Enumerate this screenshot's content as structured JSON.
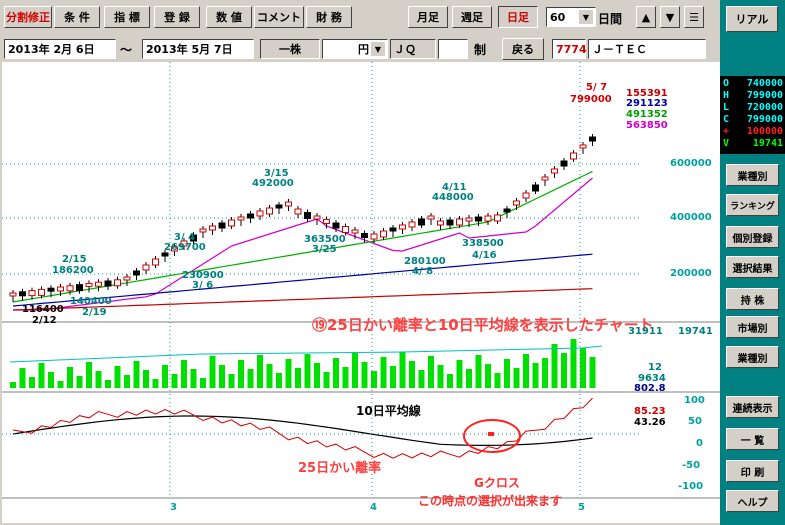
{
  "toolbar": {
    "row1": [
      "分割修正",
      "条 件",
      "指 標",
      "登 録",
      "数 値",
      "コメント",
      "財 務"
    ],
    "period": [
      "月足",
      "週足",
      "日足"
    ],
    "days_value": "60",
    "days_label": "日間",
    "realtime": "リアル"
  },
  "row2": {
    "date_from": "2013年  2月  6日",
    "tilde": "〜",
    "date_to": "2013年  5月  7日",
    "unit": "一株",
    "currency": "円",
    "market": "ＪＱ",
    "seido": "制",
    "back": "戻る",
    "code": "7774",
    "name": "Ｊ－ＴＥＣ"
  },
  "quote": {
    "rows": [
      {
        "k": "O",
        "v": "740000",
        "c": "#00ffff"
      },
      {
        "k": "H",
        "v": "799000",
        "c": "#00ffff"
      },
      {
        "k": "L",
        "v": "720000",
        "c": "#00ffff"
      },
      {
        "k": "C",
        "v": "799000",
        "c": "#00ffff"
      },
      {
        "k": "+",
        "v": "100000",
        "c": "#ff2020"
      },
      {
        "k": "V",
        "v": "19741",
        "c": "#00ff00"
      }
    ]
  },
  "side_buttons": [
    "業種別",
    "ランキング",
    "個別登録",
    "選択結果",
    "持  株",
    "市場別",
    "業種別",
    "連続表示",
    "一  覧",
    "印  刷",
    "ヘルプ"
  ],
  "chart_data": {
    "type": "candlestick",
    "price_axis": [
      "600000",
      "400000",
      "200000"
    ],
    "ma_values": [
      {
        "v": "155391",
        "c": "#c00000"
      },
      {
        "v": "291123",
        "c": "#0000a0"
      },
      {
        "v": "491352",
        "c": "#00a000"
      },
      {
        "v": "563850",
        "c": "#d000d0"
      }
    ],
    "annotations": [
      {
        "t": "5/ 7",
        "c": "#d00000"
      },
      {
        "t": "799000",
        "c": "#d00000"
      },
      {
        "t": "3/15",
        "c": "#008080"
      },
      {
        "t": "492000",
        "c": "#008080"
      },
      {
        "t": "4/11",
        "c": "#008080"
      },
      {
        "t": "448000",
        "c": "#008080"
      },
      {
        "t": "3/ 4",
        "c": "#008080"
      },
      {
        "t": "269700",
        "c": "#008080"
      },
      {
        "t": "2/15",
        "c": "#008080"
      },
      {
        "t": "186200",
        "c": "#008080"
      },
      {
        "t": "363500",
        "c": "#008080"
      },
      {
        "t": "3/25",
        "c": "#008080"
      },
      {
        "t": "338500",
        "c": "#008080"
      },
      {
        "t": "4/16",
        "c": "#008080"
      },
      {
        "t": "280100",
        "c": "#008080"
      },
      {
        "t": "4/ 8",
        "c": "#008080"
      },
      {
        "t": "230900",
        "c": "#008080"
      },
      {
        "t": "3/ 6",
        "c": "#008080"
      },
      {
        "t": "140400",
        "c": "#008080"
      },
      {
        "t": "2/19",
        "c": "#008080"
      },
      {
        "t": "116400",
        "c": "#000000"
      },
      {
        "t": "2/12",
        "c": "#000000"
      }
    ],
    "title_note": "⑲25日かい離率と10日平均線を表示したチャート",
    "volume_labels": [
      {
        "v": "31911",
        "c": "#008080"
      },
      {
        "v": "19741",
        "c": "#008080"
      },
      {
        "v": "12",
        "c": "#008080"
      },
      {
        "v": "9634",
        "c": "#008080"
      },
      {
        "v": "802.8",
        "c": "#000080"
      }
    ],
    "osc_axis": [
      "100",
      "50",
      "0",
      "-50",
      "-100"
    ],
    "osc_values": [
      {
        "v": "85.23",
        "c": "#d00000"
      },
      {
        "v": "43.26",
        "c": "#000000"
      }
    ],
    "ma10_label": "10日平均線",
    "kairi_label": "25日かい離率",
    "gcross_label": "Gクロス",
    "select_note": "この時点の選択が出来ます",
    "month_ticks": [
      "3",
      "4",
      "5"
    ]
  }
}
